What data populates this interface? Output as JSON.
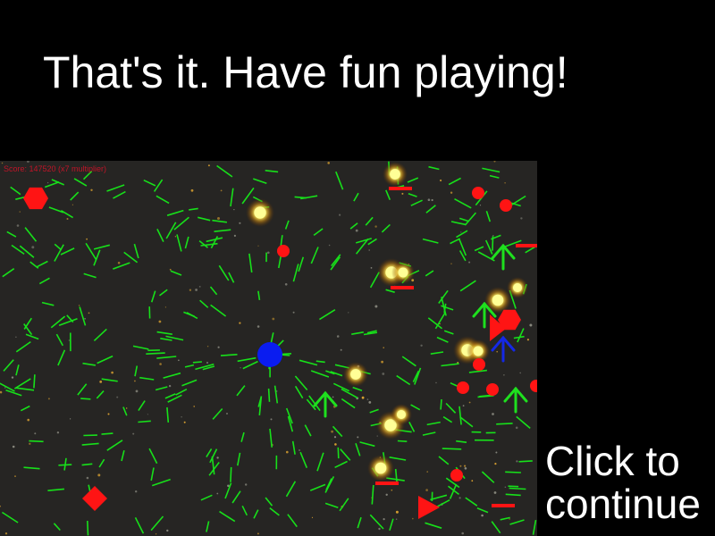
{
  "intro": {
    "headline": "That's it. Have fun playing!",
    "continue_label_1": "Click to",
    "continue_label_2": "continue"
  },
  "game": {
    "score_text": "Score: 147520 (x7 multiplier)",
    "colors": {
      "background": "#262523",
      "grid": "#17e01a",
      "player": "#0a1cf0",
      "enemy": "#ff1414",
      "arrow_green": "#1ee01e",
      "arrow_blue": "#1428e6",
      "glow": "#ffff96",
      "score": "#c01428"
    },
    "icons": [
      "player-ship-icon",
      "enemy-hexagon-icon",
      "enemy-diamond-icon",
      "enemy-triangle-icon",
      "enemy-dot-icon",
      "enemy-dash-icon",
      "arrow-up-icon",
      "glowing-orb-icon"
    ]
  }
}
